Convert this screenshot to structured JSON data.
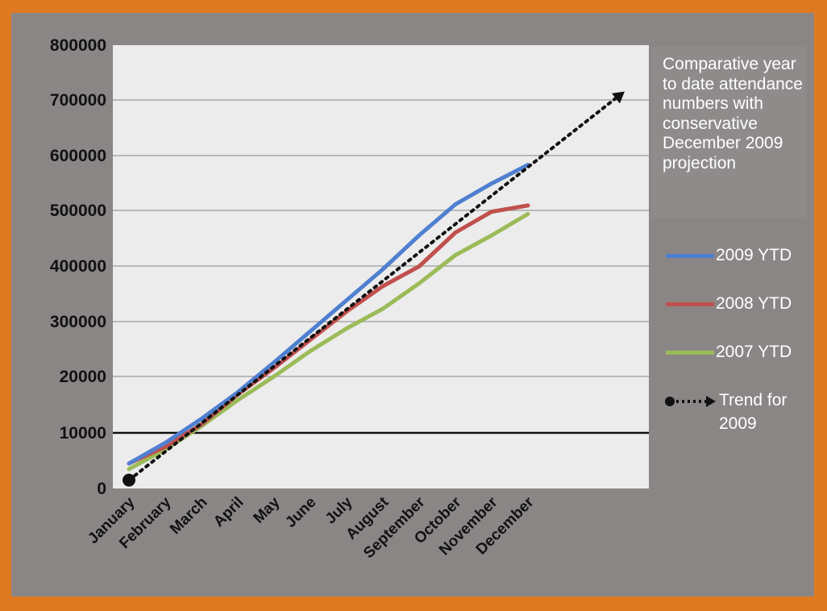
{
  "chart_data": {
    "type": "line",
    "title": "Comparative year to date attendance numbers with conservative December 2009 projection",
    "categories": [
      "January",
      "February",
      "March",
      "April",
      "May",
      "June",
      "July",
      "August",
      "September",
      "October",
      "November",
      "December"
    ],
    "y_ticks": [
      "800000",
      "700000",
      "600000",
      "500000",
      "400000",
      "300000",
      "20000",
      "10000",
      "0"
    ],
    "y_axis_note": "non-linear axis: 0 to 100000 band at bottom, then linear 100000 per gridline",
    "series": [
      {
        "name": "2009 YTD",
        "color": "#4f7fd0",
        "values": [
          45000,
          82000,
          125000,
          172000,
          225000,
          280000,
          335000,
          390000,
          450000,
          505000,
          542000,
          575000
        ]
      },
      {
        "name": "2008 YTD",
        "color": "#c0504d",
        "values": [
          45000,
          75000,
          115000,
          168000,
          215000,
          265000,
          315000,
          360000,
          395000,
          455000,
          492000,
          503000
        ]
      },
      {
        "name": "2007 YTD",
        "color": "#9bbb59",
        "values": [
          35000,
          70000,
          112000,
          158000,
          200000,
          245000,
          285000,
          320000,
          365000,
          415000,
          450000,
          488000
        ]
      }
    ],
    "trend": {
      "name": "Trend for 2009",
      "points": [
        {
          "x": "January",
          "y": 15000
        },
        {
          "x": "projection",
          "y": 705000
        }
      ]
    },
    "ylim": [
      0,
      800000
    ],
    "grid": true,
    "legend_position": "right"
  },
  "legend": {
    "title": "Comparative year to date attendance numbers with conservative December 2009 projection",
    "trend_line1": "Trend for",
    "trend_line2": "2009"
  },
  "colors": {
    "frame": "#e07a22",
    "panel": "#8b8686",
    "plot": "#ececec",
    "gridline": "#9a9a9a",
    "trend": "#111111"
  }
}
